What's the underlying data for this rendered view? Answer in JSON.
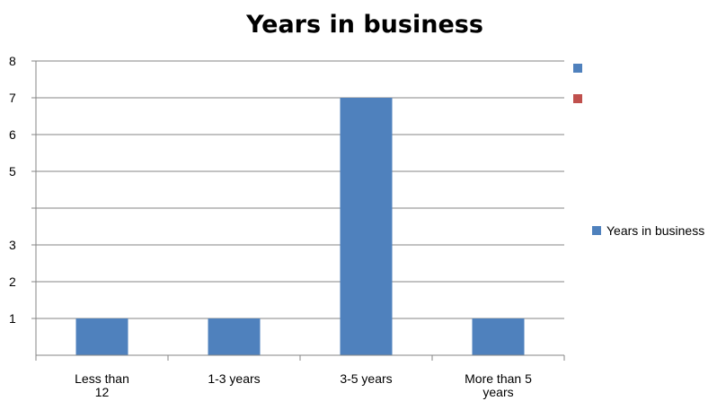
{
  "chart_data": {
    "type": "bar",
    "title": "Years in business",
    "categories": [
      [
        "Less than",
        "12"
      ],
      [
        "1-3 years"
      ],
      [
        "3-5 years"
      ],
      [
        "More than 5",
        "years"
      ]
    ],
    "series": [
      {
        "name": "Years in business",
        "values": [
          1,
          1,
          7,
          1
        ],
        "color": "#4f81bd"
      }
    ],
    "ylim": [
      0,
      8
    ],
    "yticks": [
      "1",
      "2",
      "3",
      "",
      "5",
      "6",
      "7",
      "8"
    ],
    "grid": true,
    "legend_position": "right",
    "extra_legend_markers": [
      {
        "color": "#4f81bd"
      },
      {
        "color": "#c0504d"
      }
    ]
  }
}
